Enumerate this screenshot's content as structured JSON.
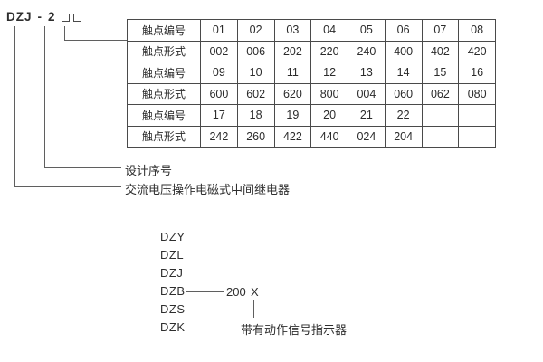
{
  "header": {
    "model_prefix": "DZJ",
    "separator": "-",
    "design_number": "2"
  },
  "callouts": {
    "design_serial_label": "设计序号",
    "relay_type_label": "交流电压操作电磁式中间继电器"
  },
  "contact_table": {
    "rows": [
      {
        "label": "触点编号",
        "values": [
          "01",
          "02",
          "03",
          "04",
          "05",
          "06",
          "07",
          "08"
        ]
      },
      {
        "label": "触点形式",
        "values": [
          "002",
          "006",
          "202",
          "220",
          "240",
          "400",
          "402",
          "420"
        ]
      },
      {
        "label": "触点编号",
        "values": [
          "09",
          "10",
          "11",
          "12",
          "13",
          "14",
          "15",
          "16"
        ]
      },
      {
        "label": "触点形式",
        "values": [
          "600",
          "602",
          "620",
          "800",
          "004",
          "060",
          "062",
          "080"
        ]
      },
      {
        "label": "触点编号",
        "values": [
          "17",
          "18",
          "19",
          "20",
          "21",
          "22",
          "",
          ""
        ]
      },
      {
        "label": "触点形式",
        "values": [
          "242",
          "260",
          "422",
          "440",
          "024",
          "204",
          "",
          ""
        ]
      }
    ]
  },
  "model_series": {
    "items": [
      "DZY",
      "DZL",
      "DZJ",
      "DZB",
      "DZS",
      "DZK"
    ],
    "dzb_code": "200",
    "dzb_variant": "X",
    "variant_note": "带有动作信号指示器"
  },
  "colors": {
    "text": "#2e2e2e",
    "table_border": "#4a4a4a",
    "callout_line": "#5f5f5f",
    "background": "#ffffff"
  }
}
